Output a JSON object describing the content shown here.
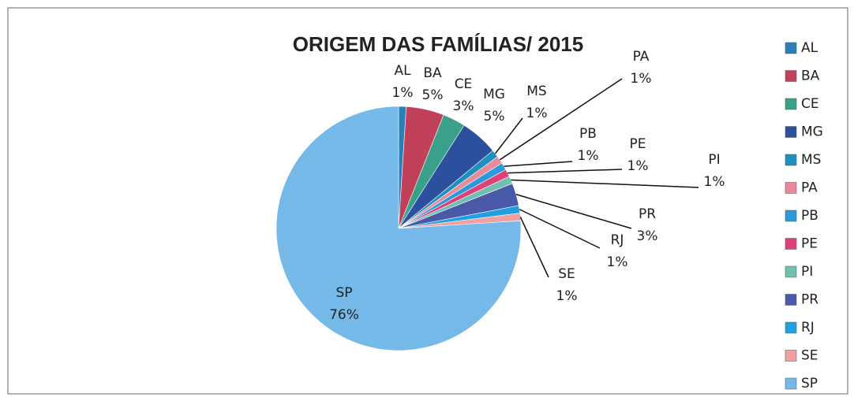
{
  "chart_data": {
    "type": "pie",
    "title": "ORIGEM DAS FAMÍLIAS/ 2015",
    "categories": [
      "AL",
      "BA",
      "CE",
      "MG",
      "MS",
      "PA",
      "PB",
      "PE",
      "PI",
      "PR",
      "RJ",
      "SE",
      "SP"
    ],
    "values": [
      1,
      5,
      3,
      5,
      1,
      1,
      1,
      1,
      1,
      3,
      1,
      1,
      76
    ],
    "value_labels": [
      "1%",
      "5%",
      "3%",
      "5%",
      "1%",
      "1%",
      "1%",
      "1%",
      "1%",
      "3%",
      "1%",
      "1%",
      "76%"
    ],
    "colors": [
      "#2a7fb8",
      "#c0405a",
      "#3aa08a",
      "#2c4f9e",
      "#1e90c0",
      "#e88a9a",
      "#2a9ad8",
      "#e0407a",
      "#70c0b0",
      "#4a5aa8",
      "#20a0e0",
      "#f0a0a0",
      "#74b9e8"
    ],
    "legend": "right"
  }
}
